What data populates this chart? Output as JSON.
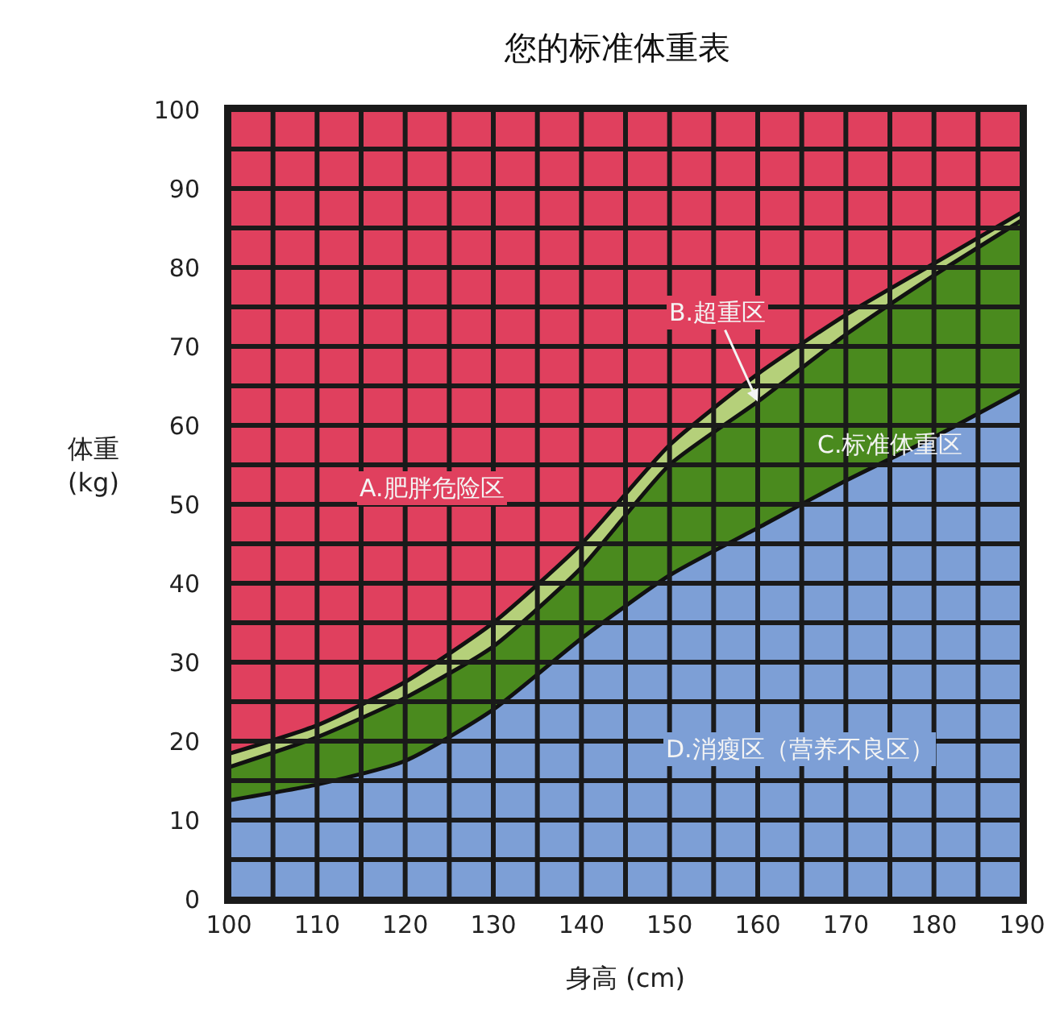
{
  "chart_data": {
    "type": "area",
    "stacked": true,
    "title": "您的标准体重表",
    "xlabel": "身高 (cm)",
    "ylabel": "体重 (kg)",
    "x": [
      100,
      110,
      120,
      130,
      140,
      150,
      160,
      170,
      180,
      190
    ],
    "series": [
      {
        "color": "#7d9fd6",
        "values": [
          12.5,
          14.5,
          17.5,
          24,
          33,
          41,
          47,
          53,
          58.5,
          64.5
        ]
      },
      {
        "color": "#4a8a1e",
        "values": [
          4.2,
          6,
          8,
          8,
          9,
          14,
          16,
          18.5,
          20.5,
          21.5
        ]
      },
      {
        "color": "#b5d07a",
        "values": [
          1.7,
          1.5,
          2,
          3,
          3,
          2.5,
          3.5,
          2.5,
          1.5,
          1
        ]
      },
      {
        "color": "#e0405e",
        "values": [
          81.6,
          78,
          72.5,
          65,
          55,
          42.5,
          33.5,
          26,
          19.5,
          13
        ]
      }
    ],
    "annotations": [
      "A.肥胖危险区",
      {
        "text": "B.超重区",
        "x": 160,
        "y": 63
      },
      "C.标准体重区",
      "D.消瘦区（营养不良区）"
    ],
    "xlim": [
      100,
      190
    ],
    "ylim": [
      0,
      100
    ],
    "xticks": [
      100,
      110,
      120,
      130,
      140,
      150,
      160,
      170,
      180,
      190
    ],
    "yticks": [
      0,
      10,
      20,
      30,
      40,
      50,
      60,
      70,
      80,
      90,
      100
    ],
    "grid": true,
    "marker": "none",
    "line_style": "solid"
  }
}
